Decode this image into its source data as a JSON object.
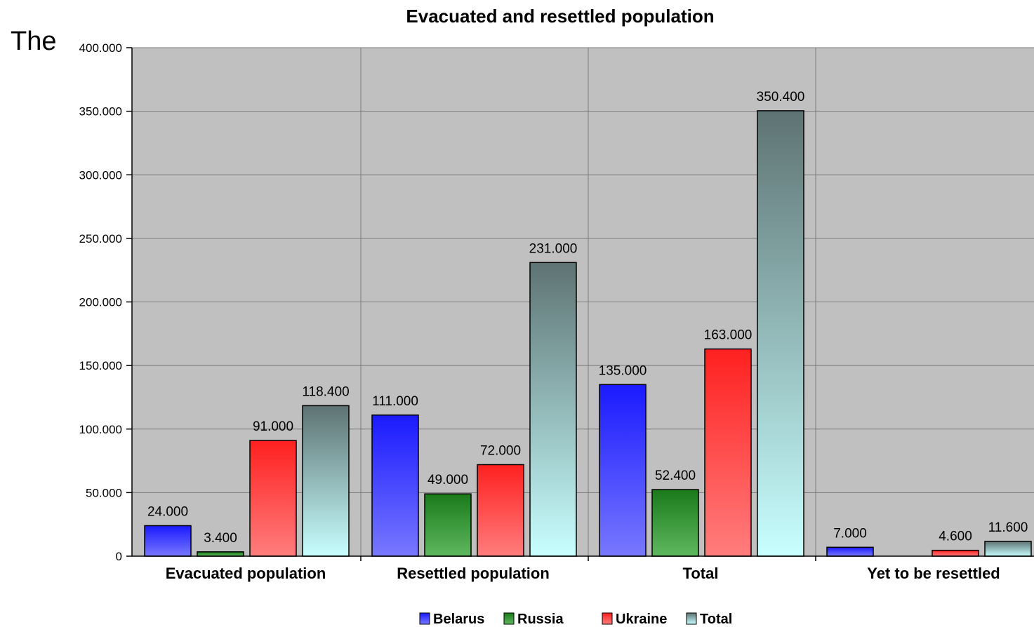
{
  "stray_text": "The",
  "colors": {
    "plot_bg": "#c0c0c0",
    "grid": "#7a7a7a",
    "Belarus": [
      "#1a1aff",
      "#7878ff"
    ],
    "Russia": [
      "#1a7a1a",
      "#5fb85f"
    ],
    "Ukraine": [
      "#ff2020",
      "#ff7d7d"
    ],
    "Total": [
      "#5e7373",
      "#c8ffff"
    ]
  },
  "chart_data": {
    "type": "bar",
    "title": "Evacuated and resettled population",
    "xlabel": "",
    "ylabel": "",
    "ylim": [
      0,
      400000
    ],
    "yticks": [
      0,
      50000,
      100000,
      150000,
      200000,
      250000,
      300000,
      350000,
      400000
    ],
    "ytick_labels": [
      "0",
      "50.000",
      "100.000",
      "150.000",
      "200.000",
      "250.000",
      "300.000",
      "350.000",
      "400.000"
    ],
    "categories": [
      "Evacuated population",
      "Resettled population",
      "Total",
      "Yet to be resettled"
    ],
    "series": [
      {
        "name": "Belarus",
        "values": [
          24000,
          111000,
          135000,
          7000
        ],
        "labels": [
          "24.000",
          "111.000",
          "135.000",
          "7.000"
        ]
      },
      {
        "name": "Russia",
        "values": [
          3400,
          49000,
          52400,
          0
        ],
        "labels": [
          "3.400",
          "49.000",
          "52.400",
          ""
        ]
      },
      {
        "name": "Ukraine",
        "values": [
          91000,
          72000,
          163000,
          4600
        ],
        "labels": [
          "91.000",
          "72.000",
          "163.000",
          "4.600"
        ]
      },
      {
        "name": "Total",
        "values": [
          118400,
          231000,
          350400,
          11600
        ],
        "labels": [
          "118.400",
          "231.000",
          "350.400",
          "11.600"
        ]
      }
    ],
    "grid": true,
    "legend": "bottom"
  }
}
